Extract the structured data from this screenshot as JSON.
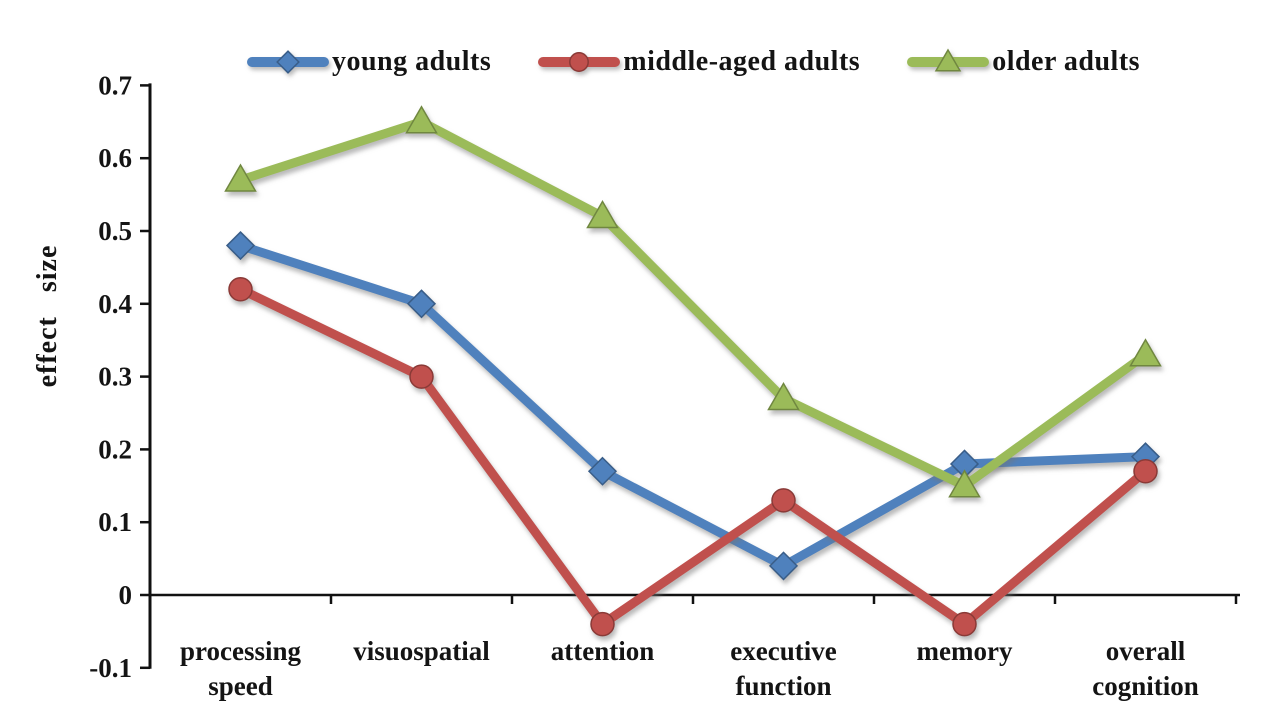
{
  "figure": {
    "background": "#ffffff",
    "axis_color": "#111111",
    "text_color": "#141414"
  },
  "chart_data": {
    "type": "line",
    "title": "",
    "xlabel": "",
    "ylabel": "effect size",
    "ylim": [
      -0.1,
      0.7
    ],
    "ytick_step": 0.1,
    "y_ticks": [
      "0.7",
      "0.6",
      "0.5",
      "0.4",
      "0.3",
      "0.2",
      "0.1",
      "0",
      "-0.1"
    ],
    "grid": false,
    "legend_position": "top",
    "categories": [
      "processing speed",
      "visuospatial",
      "attention",
      "executive function",
      "memory",
      "overall cognition"
    ],
    "category_label_lines": [
      [
        "processing",
        "speed"
      ],
      [
        "visuospatial"
      ],
      [
        "attention"
      ],
      [
        "executive",
        "function"
      ],
      [
        "memory"
      ],
      [
        "overall",
        "cognition"
      ]
    ],
    "series": [
      {
        "name": "young adults",
        "color": "#4f81bd",
        "marker": "diamond",
        "values": [
          0.48,
          0.4,
          0.17,
          0.04,
          0.18,
          0.19
        ]
      },
      {
        "name": "middle-aged adults",
        "color": "#c0504d",
        "marker": "circle",
        "values": [
          0.42,
          0.3,
          -0.04,
          0.13,
          -0.04,
          0.17
        ]
      },
      {
        "name": "older adults",
        "color": "#9bbb59",
        "marker": "triangle",
        "values": [
          0.57,
          0.65,
          0.52,
          0.27,
          0.15,
          0.33
        ]
      }
    ]
  }
}
